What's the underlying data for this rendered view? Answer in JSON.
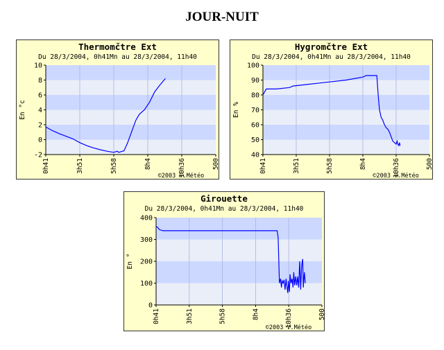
{
  "page": {
    "title": "JOUR-NUIT"
  },
  "styles": {
    "panel_bg": "#ffffcc",
    "band_dark": "#ccd8ff",
    "band_light": "#e9eef8",
    "line": "#0000ff",
    "grid": "#aab4dd"
  },
  "chart_data": [
    {
      "type": "line",
      "title": "Thermomčtre Ext",
      "subtitle": "Du 28/3/2004, 0h41Mn au 28/3/2004, 11h40",
      "ylabel": "En °c",
      "credit": "©2003 V.Météo",
      "x_ticks": [
        "0h41",
        "3h51",
        "5h58",
        "8h4",
        "10h36",
        "500"
      ],
      "y_ticks": [
        "10",
        "8",
        "6",
        "4",
        "2",
        "0",
        "-2"
      ],
      "ylim": [
        -2,
        10
      ],
      "series": [
        {
          "values": [
            [
              0,
              1.7
            ],
            [
              8,
              1.5
            ],
            [
              20,
              1.2
            ],
            [
              40,
              0.8
            ],
            [
              60,
              0.45
            ],
            [
              80,
              0.1
            ],
            [
              100,
              -0.4
            ],
            [
              120,
              -0.8
            ],
            [
              140,
              -1.1
            ],
            [
              160,
              -1.35
            ],
            [
              180,
              -1.55
            ],
            [
              200,
              -1.7
            ],
            [
              210,
              -1.55
            ],
            [
              215,
              -1.7
            ],
            [
              222,
              -1.6
            ],
            [
              230,
              -1.5
            ],
            [
              240,
              -0.5
            ],
            [
              252,
              1.0
            ],
            [
              265,
              2.6
            ],
            [
              275,
              3.4
            ],
            [
              290,
              4.0
            ],
            [
              305,
              5.0
            ],
            [
              320,
              6.4
            ],
            [
              335,
              7.3
            ],
            [
              348,
              8.0
            ],
            [
              352,
              8.2
            ]
          ]
        }
      ]
    },
    {
      "type": "line",
      "title": "Hygromčtre Ext",
      "subtitle": "Du 28/3/2004, 0h41Mn au 28/3/2004, 11h40",
      "ylabel": "En %",
      "credit": "©2003 V.Météo",
      "x_ticks": [
        "0h41",
        "3h51",
        "5h58",
        "8h4",
        "10h36",
        "500"
      ],
      "y_ticks": [
        "100",
        "90",
        "80",
        "70",
        "60",
        "50",
        "40"
      ],
      "ylim": [
        40,
        100
      ],
      "series": [
        {
          "values": [
            [
              0,
              80
            ],
            [
              5,
              82
            ],
            [
              10,
              84
            ],
            [
              40,
              84
            ],
            [
              80,
              85
            ],
            [
              90,
              86
            ],
            [
              130,
              87
            ],
            [
              170,
              88
            ],
            [
              210,
              89
            ],
            [
              250,
              90
            ],
            [
              275,
              91
            ],
            [
              300,
              92
            ],
            [
              310,
              93
            ],
            [
              330,
              93
            ],
            [
              342,
              93
            ],
            [
              346,
              80
            ],
            [
              350,
              70
            ],
            [
              355,
              65
            ],
            [
              360,
              63
            ],
            [
              365,
              60
            ],
            [
              370,
              58
            ],
            [
              375,
              57
            ],
            [
              380,
              55
            ],
            [
              385,
              52
            ],
            [
              390,
              49
            ],
            [
              395,
              48
            ],
            [
              400,
              47
            ],
            [
              403,
              49
            ],
            [
              405,
              47
            ],
            [
              408,
              46
            ],
            [
              410,
              48
            ],
            [
              412,
              46
            ]
          ]
        }
      ]
    },
    {
      "type": "line",
      "title": "Girouette",
      "subtitle": "Du 28/3/2004, 0h41Mn au 28/3/2004, 11h40",
      "ylabel": "En °",
      "credit": "©2003 V.Météo",
      "x_ticks": [
        "0h41",
        "3h51",
        "5h58",
        "8h4",
        "10h36",
        "500"
      ],
      "y_ticks": [
        "400",
        "300",
        "200",
        "100",
        "0"
      ],
      "ylim": [
        0,
        400
      ],
      "series": [
        {
          "values": [
            [
              0,
              360
            ],
            [
              5,
              355
            ],
            [
              10,
              345
            ],
            [
              20,
              340
            ],
            [
              100,
              340
            ],
            [
              200,
              340
            ],
            [
              300,
              340
            ],
            [
              365,
              340
            ],
            [
              368,
              310
            ],
            [
              370,
              200
            ],
            [
              372,
              100
            ],
            [
              375,
              120
            ],
            [
              378,
              80
            ],
            [
              380,
              110
            ],
            [
              383,
              100
            ],
            [
              386,
              115
            ],
            [
              389,
              70
            ],
            [
              392,
              120
            ],
            [
              394,
              90
            ],
            [
              397,
              55
            ],
            [
              399,
              110
            ],
            [
              402,
              60
            ],
            [
              404,
              140
            ],
            [
              407,
              100
            ],
            [
              410,
              120
            ],
            [
              413,
              80
            ],
            [
              415,
              150
            ],
            [
              418,
              90
            ],
            [
              421,
              130
            ],
            [
              424,
              90
            ],
            [
              427,
              130
            ],
            [
              430,
              80
            ],
            [
              433,
              200
            ],
            [
              436,
              70
            ],
            [
              439,
              180
            ],
            [
              442,
              210
            ],
            [
              444,
              80
            ],
            [
              447,
              150
            ],
            [
              450,
              100
            ]
          ]
        }
      ]
    }
  ]
}
